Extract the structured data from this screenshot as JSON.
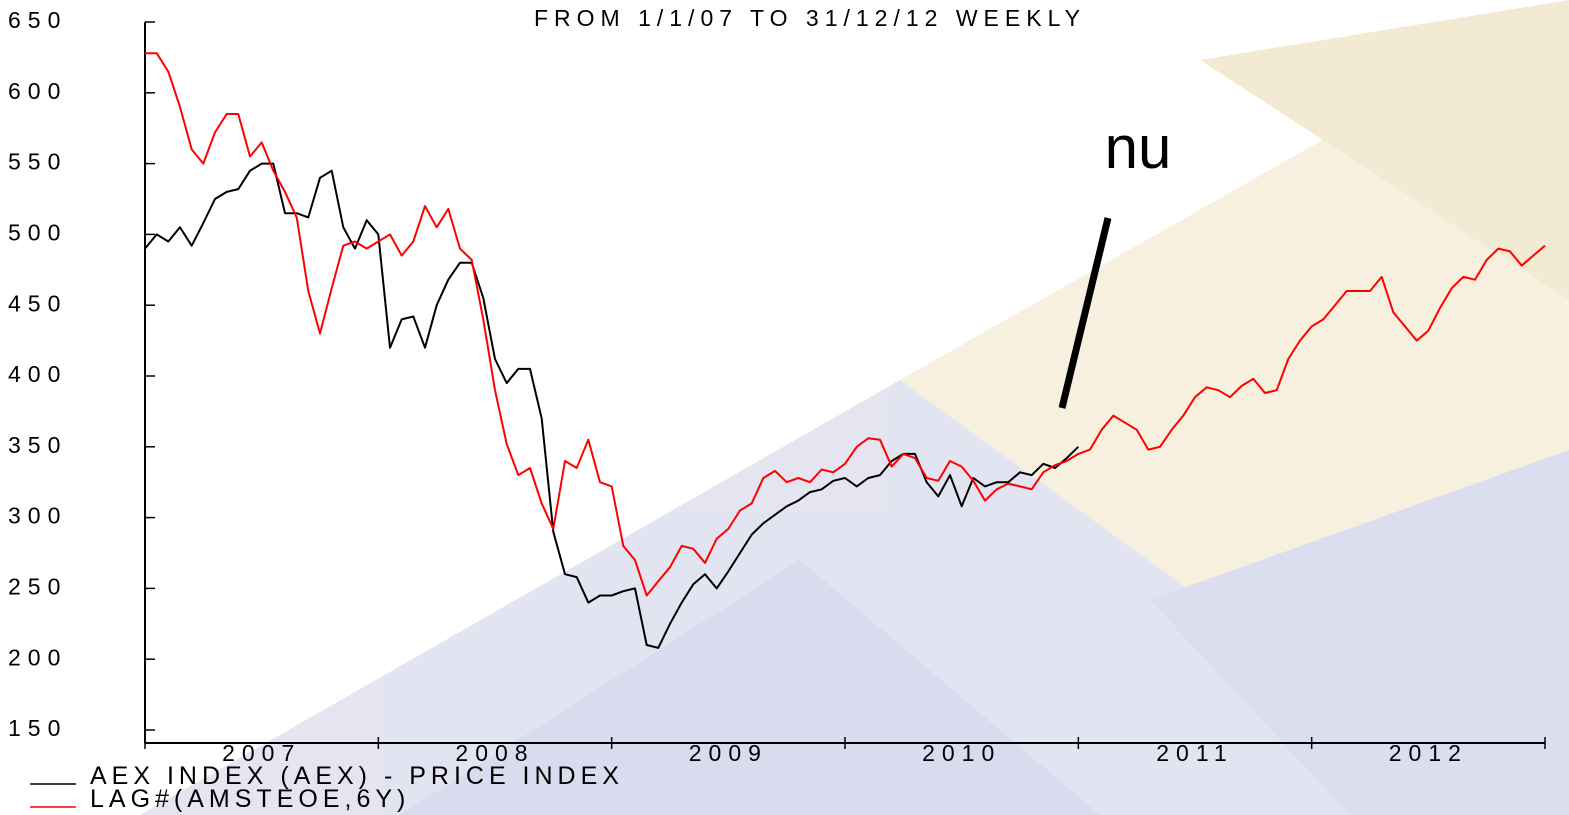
{
  "chart_data": {
    "type": "line",
    "title": "FROM 1/1/07 TO 31/12/12 WEEKLY",
    "annotation": "nu",
    "x": [
      2007,
      2007.05,
      2007.1,
      2007.15,
      2007.2,
      2007.25,
      2007.3,
      2007.35,
      2007.4,
      2007.45,
      2007.5,
      2007.55,
      2007.6,
      2007.65,
      2007.7,
      2007.75,
      2007.8,
      2007.85,
      2007.9,
      2007.95,
      2008,
      2008.05,
      2008.1,
      2008.15,
      2008.2,
      2008.25,
      2008.3,
      2008.35,
      2008.4,
      2008.45,
      2008.5,
      2008.55,
      2008.6,
      2008.65,
      2008.7,
      2008.75,
      2008.8,
      2008.85,
      2008.9,
      2008.95,
      2009,
      2009.05,
      2009.1,
      2009.15,
      2009.2,
      2009.25,
      2009.3,
      2009.35,
      2009.4,
      2009.45,
      2009.5,
      2009.55,
      2009.6,
      2009.65,
      2009.7,
      2009.75,
      2009.8,
      2009.85,
      2009.9,
      2009.95,
      2010,
      2010.05,
      2010.1,
      2010.15,
      2010.2,
      2010.25,
      2010.3,
      2010.35,
      2010.4,
      2010.45,
      2010.5,
      2010.55,
      2010.6,
      2010.65,
      2010.7,
      2010.75,
      2010.8,
      2010.85,
      2010.9,
      2010.95,
      2011,
      2011.05,
      2011.1,
      2011.15,
      2011.2,
      2011.25,
      2011.3,
      2011.35,
      2011.4,
      2011.45,
      2011.5,
      2011.55,
      2011.6,
      2011.65,
      2011.7,
      2011.75,
      2011.8,
      2011.85,
      2011.9,
      2011.95,
      2012,
      2012.05,
      2012.1,
      2012.15,
      2012.2,
      2012.25,
      2012.3,
      2012.35,
      2012.4,
      2012.45,
      2012.5,
      2012.55,
      2012.6,
      2012.65,
      2012.7,
      2012.75,
      2012.8,
      2012.85,
      2012.9,
      2012.95,
      2013
    ],
    "series": [
      {
        "name": "AEX INDEX (AEX) - PRICE INDEX",
        "color": "#000000",
        "values": [
          490,
          500,
          495,
          505,
          492,
          508,
          525,
          530,
          532,
          545,
          550,
          550,
          515,
          515,
          512,
          540,
          545,
          505,
          490,
          510,
          500,
          420,
          440,
          442,
          420,
          450,
          468,
          480,
          480,
          455,
          412,
          395,
          405,
          405,
          370,
          290,
          260,
          258,
          240,
          245,
          245,
          248,
          250,
          210,
          208,
          225,
          240,
          253,
          260,
          250,
          262,
          275,
          288,
          296,
          302,
          308,
          312,
          318,
          320,
          326,
          328,
          322,
          328,
          330,
          340,
          345,
          345,
          325,
          315,
          330,
          308,
          328,
          322,
          325,
          325,
          332,
          330,
          338,
          335,
          342,
          350,
          null,
          null,
          null,
          null,
          null,
          null,
          null,
          null,
          null,
          null,
          null,
          null,
          null,
          null,
          null,
          null,
          null,
          null,
          null,
          null,
          null,
          null,
          null,
          null,
          null,
          null,
          null,
          null,
          null,
          null,
          null,
          null,
          null,
          null,
          null,
          null,
          null,
          null,
          null,
          null
        ]
      },
      {
        "name": "LAG#(AMSTEOE,6Y)",
        "color": "#ff0000",
        "values": [
          628,
          628,
          615,
          590,
          560,
          550,
          572,
          585,
          585,
          555,
          565,
          545,
          530,
          512,
          460,
          430,
          462,
          492,
          495,
          490,
          495,
          500,
          485,
          495,
          520,
          505,
          518,
          490,
          482,
          440,
          390,
          352,
          330,
          335,
          310,
          292,
          340,
          335,
          355,
          325,
          322,
          280,
          270,
          245,
          255,
          265,
          280,
          278,
          268,
          285,
          292,
          305,
          310,
          328,
          333,
          325,
          328,
          325,
          334,
          332,
          338,
          350,
          356,
          355,
          336,
          345,
          342,
          328,
          326,
          340,
          336,
          326,
          312,
          320,
          324,
          322,
          320,
          332,
          337,
          340,
          345,
          348,
          362,
          372,
          367,
          362,
          348,
          350,
          362,
          372,
          385,
          392,
          390,
          385,
          393,
          398,
          388,
          390,
          412,
          425,
          435,
          440,
          450,
          460,
          460,
          460,
          470,
          445,
          435,
          425,
          432,
          448,
          462,
          470,
          468,
          482,
          490,
          488,
          478,
          485,
          492
        ]
      }
    ],
    "xlim": [
      2007,
      2013
    ],
    "xticks": [
      {
        "value": 2007.5,
        "label": "2007"
      },
      {
        "value": 2008.5,
        "label": "2008"
      },
      {
        "value": 2009.5,
        "label": "2009"
      },
      {
        "value": 2010.5,
        "label": "2010"
      },
      {
        "value": 2011.5,
        "label": "2011"
      },
      {
        "value": 2012.5,
        "label": "2012"
      }
    ],
    "ylim": [
      150,
      650
    ],
    "yticks": [
      150,
      200,
      250,
      300,
      350,
      400,
      450,
      500,
      550,
      600,
      650
    ]
  }
}
